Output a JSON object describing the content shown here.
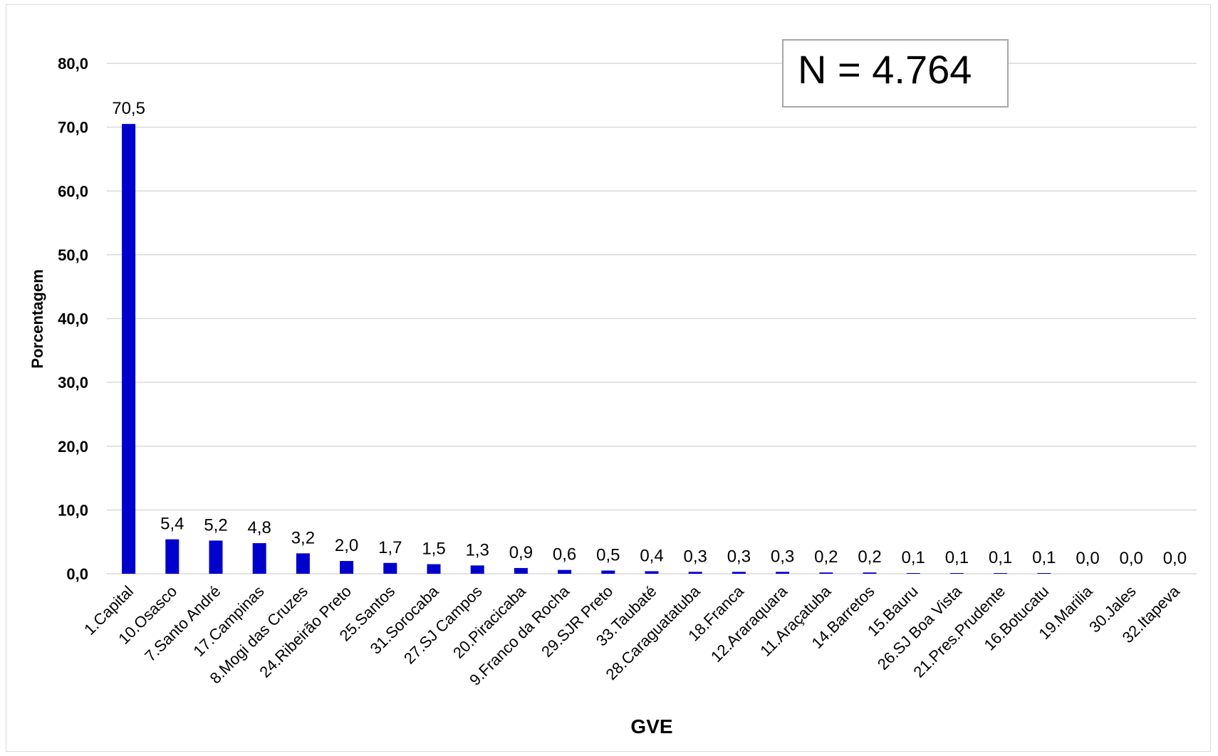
{
  "annotation": {
    "text": "N = 4.764"
  },
  "chart_data": {
    "type": "bar",
    "title": "",
    "xlabel": "GVE",
    "ylabel": "Porcentagem",
    "ylim": [
      0,
      80
    ],
    "yticks": [
      "0,0",
      "10,0",
      "20,0",
      "30,0",
      "40,0",
      "50,0",
      "60,0",
      "70,0",
      "80,0"
    ],
    "grid": true,
    "bar_color": "#0000cc",
    "categories": [
      "1.Capital",
      "10.Osasco",
      "7.Santo André",
      "17.Campinas",
      "8.Mogi das Cruzes",
      "24.Ribeirão Preto",
      "25.Santos",
      "31.Sorocaba",
      "27.SJ Campos",
      "20.Piracicaba",
      "9.Franco da Rocha",
      "29.SJR Preto",
      "33.Taubaté",
      "28.Caraguatatuba",
      "18.Franca",
      "12.Araraquara",
      "11.Araçatuba",
      "14.Barretos",
      "15.Bauru",
      "26.SJ Boa Vista",
      "21.Pres.Prudente",
      "16.Botucatu",
      "19.Marilia",
      "30.Jales",
      "32.Itapeva"
    ],
    "values": [
      70.5,
      5.4,
      5.2,
      4.8,
      3.2,
      2.0,
      1.7,
      1.5,
      1.3,
      0.9,
      0.6,
      0.5,
      0.4,
      0.3,
      0.3,
      0.3,
      0.2,
      0.2,
      0.1,
      0.1,
      0.1,
      0.1,
      0.0,
      0.0,
      0.0
    ],
    "data_labels": [
      "70,5",
      "5,4",
      "5,2",
      "4,8",
      "3,2",
      "2,0",
      "1,7",
      "1,5",
      "1,3",
      "0,9",
      "0,6",
      "0,5",
      "0,4",
      "0,3",
      "0,3",
      "0,3",
      "0,2",
      "0,2",
      "0,1",
      "0,1",
      "0,1",
      "0,1",
      "0,0",
      "0,0",
      "0,0"
    ]
  }
}
